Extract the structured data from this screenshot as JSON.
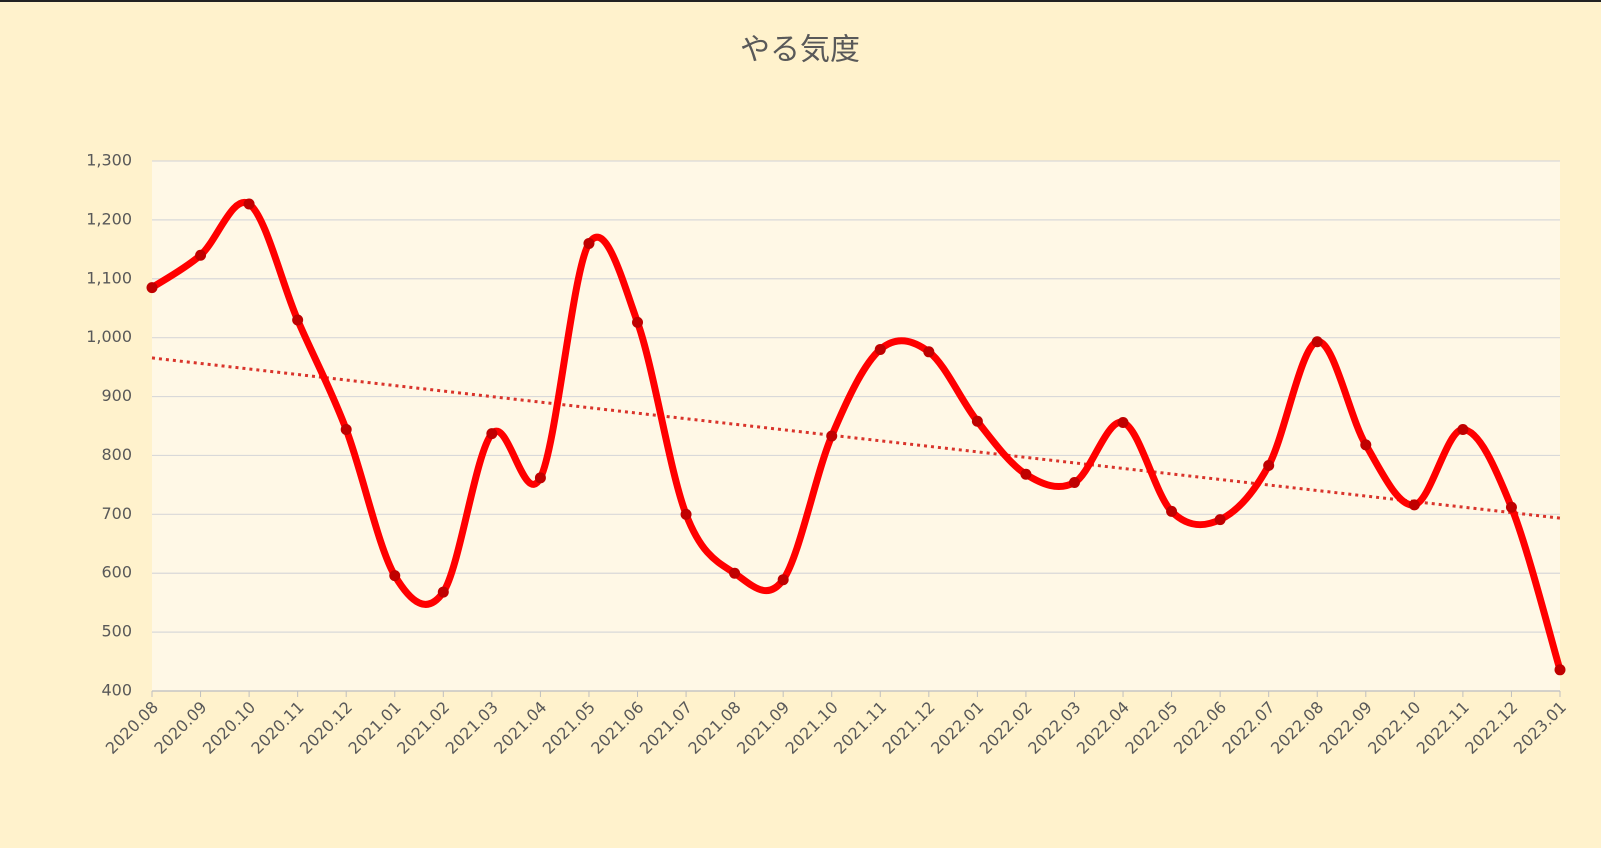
{
  "chart_data": {
    "type": "line",
    "title": "やる気度",
    "categories": [
      "2020.08",
      "2020.09",
      "2020.10",
      "2020.11",
      "2020.12",
      "2021.01",
      "2021.02",
      "2021.03",
      "2021.04",
      "2021.05",
      "2021.06",
      "2021.07",
      "2021.08",
      "2021.09",
      "2021.10",
      "2021.11",
      "2021.12",
      "2022.01",
      "2022.02",
      "2022.03",
      "2022.04",
      "2022.05",
      "2022.06",
      "2022.07",
      "2022.08",
      "2022.09",
      "2022.10",
      "2022.11",
      "2022.12",
      "2023.01"
    ],
    "values": [
      1085,
      1140,
      1227,
      1030,
      844,
      596,
      568,
      837,
      762,
      1160,
      1026,
      700,
      600,
      589,
      833,
      980,
      976,
      858,
      768,
      754,
      856,
      705,
      691,
      783,
      993,
      818,
      716,
      844,
      712,
      436
    ],
    "color": "#ff0000",
    "marker_color": "#c00000",
    "smooth": true,
    "trendline": true,
    "trendline_color": "#d9342b",
    "ylim": [
      400,
      1300
    ],
    "yticks": [
      400,
      500,
      600,
      700,
      800,
      900,
      {
        "value": 1000,
        "label": "1,000"
      },
      {
        "value": 1100,
        "label": "1,100"
      },
      {
        "value": 1200,
        "label": "1,200"
      },
      {
        "value": 1300,
        "label": "1,300"
      }
    ],
    "grid": true
  }
}
